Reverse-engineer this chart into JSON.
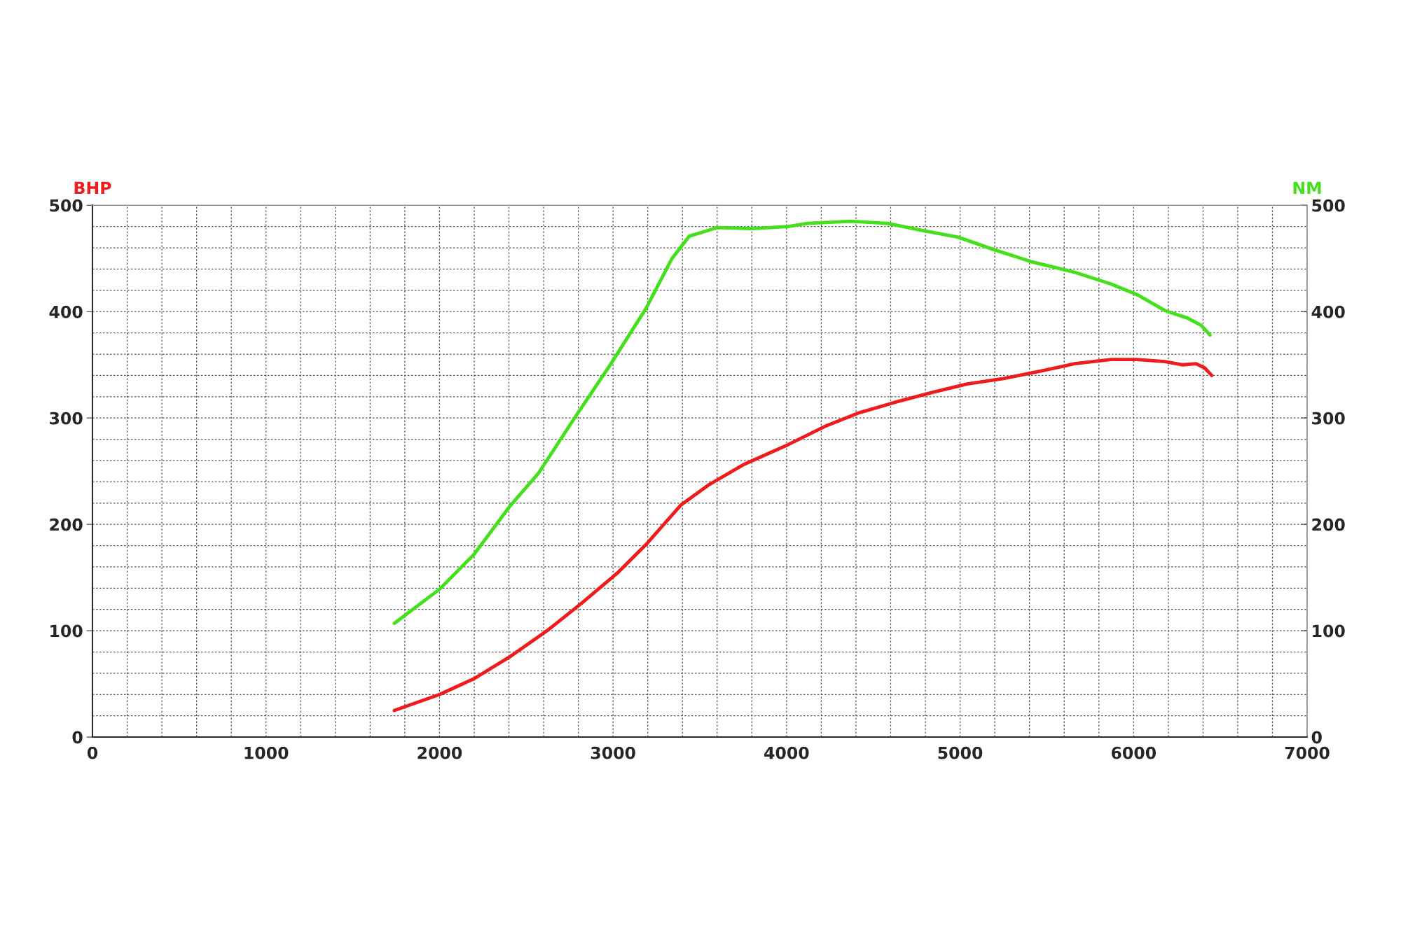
{
  "chart_data": {
    "type": "line",
    "ylabel": "BHP",
    "y2label": "NM",
    "xlim": [
      0,
      7000
    ],
    "xticks": [
      0,
      1000,
      2000,
      3000,
      4000,
      5000,
      6000,
      7000
    ],
    "ylim": [
      0,
      500
    ],
    "yticks": [
      0,
      100,
      200,
      300,
      400,
      500
    ],
    "y2lim": [
      0,
      500
    ],
    "y2ticks": [
      0,
      100,
      200,
      300,
      400,
      500
    ],
    "grid": true,
    "line_style": "solid",
    "marker": "none",
    "series": [
      {
        "color": "#ee1c1c",
        "axis": "y",
        "x": [
          1740,
          2000,
          2200,
          2410,
          2620,
          2820,
          3030,
          3190,
          3390,
          3550,
          3750,
          4010,
          4220,
          4420,
          4630,
          4840,
          5040,
          5250,
          5460,
          5660,
          5870,
          6020,
          6180,
          6280,
          6360,
          6410,
          6450
        ],
        "values": [
          25,
          40,
          55,
          76,
          100,
          126,
          155,
          181,
          218,
          237,
          256,
          275,
          292,
          305,
          315,
          324,
          332,
          337,
          344,
          351,
          355,
          355,
          353,
          350,
          351,
          347,
          340
        ]
      },
      {
        "color": "#44e01c",
        "axis": "y2",
        "x": [
          1740,
          2000,
          2200,
          2410,
          2570,
          2770,
          2980,
          3190,
          3340,
          3440,
          3600,
          3800,
          4010,
          4120,
          4370,
          4580,
          4790,
          4990,
          5200,
          5410,
          5660,
          5870,
          6020,
          6180,
          6310,
          6390,
          6440
        ],
        "values": [
          107,
          139,
          172,
          218,
          248,
          298,
          349,
          403,
          450,
          471,
          479,
          478,
          480,
          483,
          485,
          483,
          476,
          470,
          458,
          447,
          437,
          426,
          416,
          401,
          394,
          387,
          378
        ]
      }
    ]
  }
}
